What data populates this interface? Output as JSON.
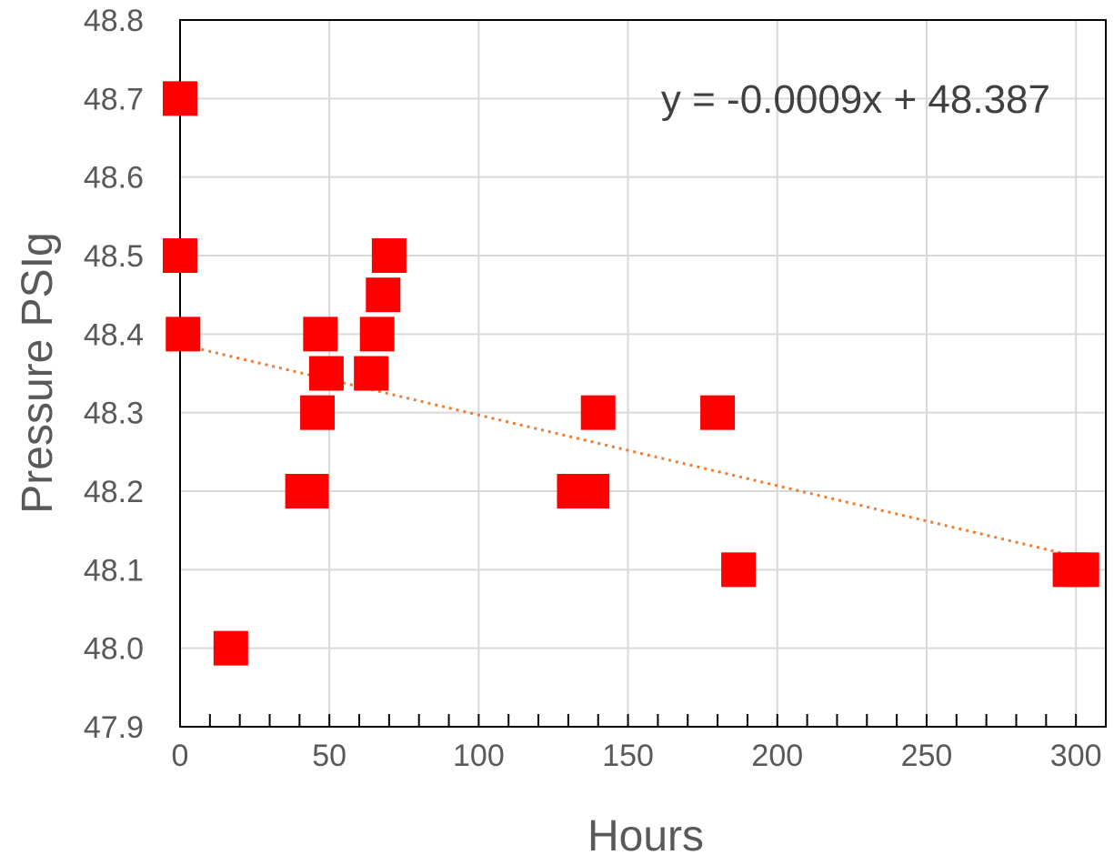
{
  "chart_data": {
    "type": "scatter",
    "xlabel": "Hours",
    "ylabel": "Pressure PSIg",
    "xlim": [
      0,
      310
    ],
    "ylim": [
      47.9,
      48.8
    ],
    "x_ticks": [
      0,
      50,
      100,
      150,
      200,
      250,
      300
    ],
    "y_ticks": [
      47.9,
      48.0,
      48.1,
      48.2,
      48.3,
      48.4,
      48.5,
      48.6,
      48.7,
      48.8
    ],
    "x_tick_labels": [
      "0",
      "50",
      "100",
      "150",
      "200",
      "250",
      "300"
    ],
    "y_tick_labels": [
      "47.9",
      "48.0",
      "48.1",
      "48.2",
      "48.3",
      "48.4",
      "48.5",
      "48.6",
      "48.7",
      "48.8"
    ],
    "grid": true,
    "marker": "square",
    "marker_color": "#ff0000",
    "trendline_color": "#ed7d31",
    "series": [
      {
        "points": [
          {
            "x": 0,
            "y": 48.7
          },
          {
            "x": 0,
            "y": 48.5
          },
          {
            "x": 1,
            "y": 48.4
          },
          {
            "x": 17,
            "y": 48.0
          },
          {
            "x": 41,
            "y": 48.2
          },
          {
            "x": 44,
            "y": 48.2
          },
          {
            "x": 46,
            "y": 48.3
          },
          {
            "x": 47,
            "y": 48.4
          },
          {
            "x": 49,
            "y": 48.35
          },
          {
            "x": 64,
            "y": 48.35
          },
          {
            "x": 66,
            "y": 48.4
          },
          {
            "x": 68,
            "y": 48.45
          },
          {
            "x": 70,
            "y": 48.5
          },
          {
            "x": 132,
            "y": 48.2
          },
          {
            "x": 138,
            "y": 48.2
          },
          {
            "x": 140,
            "y": 48.3
          },
          {
            "x": 180,
            "y": 48.3
          },
          {
            "x": 187,
            "y": 48.1
          },
          {
            "x": 298,
            "y": 48.1
          },
          {
            "x": 302,
            "y": 48.1
          }
        ]
      }
    ],
    "trendline": {
      "slope": -0.0009,
      "intercept": 48.387,
      "x_range": [
        0,
        300
      ],
      "equation": "y = -0.0009x + 48.387"
    }
  }
}
